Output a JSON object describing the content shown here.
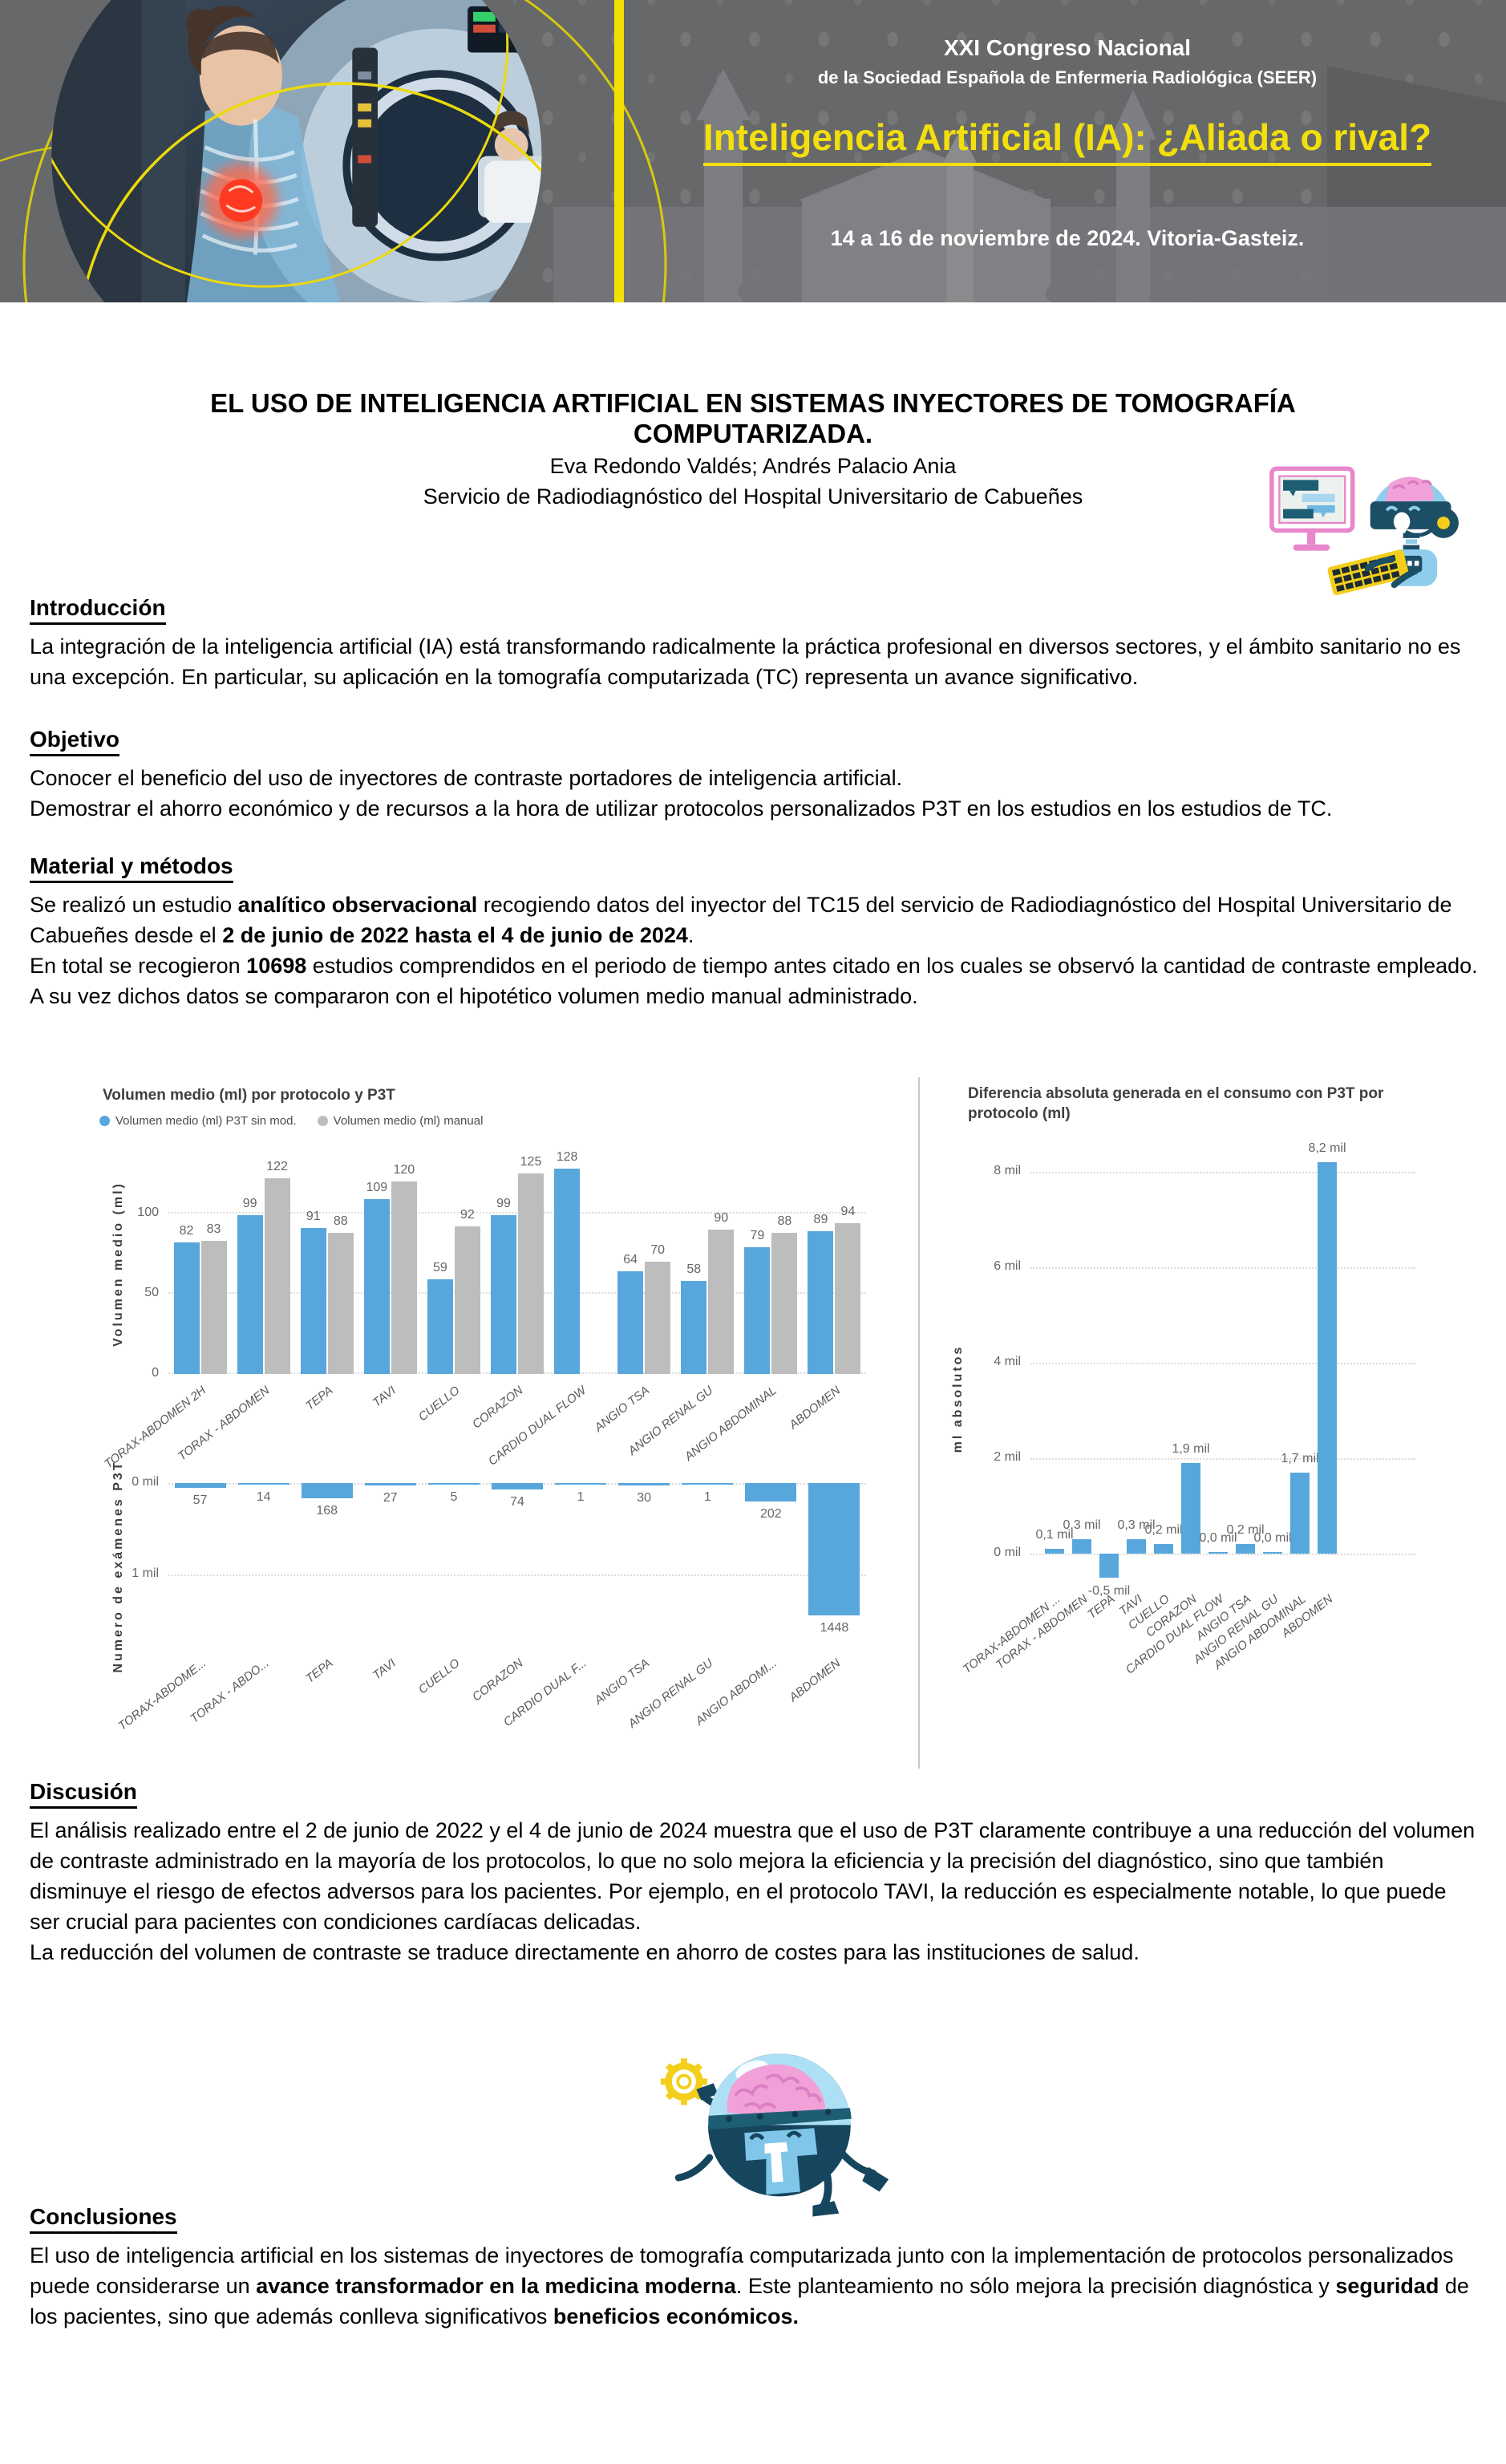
{
  "header": {
    "congress_line1": "XXI Congreso Nacional",
    "congress_line2": "de la Sociedad Española de Enfermeria Radiológica (SEER)",
    "title": "Inteligencia Artificial (IA): ¿Aliada o rival?",
    "date_place": "14 a 16 de noviembre de 2024. Vitoria-Gasteiz.",
    "accent_yellow": "#f5e003",
    "bg_gray": "#67686a"
  },
  "poster": {
    "title_line1": "EL USO DE INTELIGENCIA ARTIFICIAL EN SISTEMAS INYECTORES DE TOMOGRAFÍA",
    "title_line2": "COMPUTARIZADA.",
    "authors": "Eva Redondo Valdés; Andrés Palacio Ania",
    "affiliation": "Servicio de Radiodiagnóstico del Hospital Universitario de Cabueñes"
  },
  "illustrations": {
    "hero": "woman-with-ct-scanner-photo",
    "typing": "robot-typing-at-computer-illustration",
    "mascot": "robot-brain-mascot-illustration"
  },
  "sections": {
    "intro": {
      "heading": "Introducción",
      "paragraphs": [
        [
          {
            "t": "La integración de la inteligencia artificial (IA) está transformando radicalmente la práctica profesional en diversos sectores, y el ámbito sanitario no es una excepción. En particular, su aplicación en la tomografía computarizada (TC) representa un avance significativo.",
            "b": false
          }
        ]
      ]
    },
    "objetivo": {
      "heading": "Objetivo",
      "paragraphs": [
        [
          {
            "t": "Conocer el beneficio del uso de inyectores de contraste portadores de inteligencia artificial.",
            "b": false
          }
        ],
        [
          {
            "t": "Demostrar el ahorro económico y de recursos a la hora de utilizar protocolos personalizados P3T en los estudios en los estudios de TC.",
            "b": false
          }
        ]
      ]
    },
    "material": {
      "heading": "Material y métodos",
      "paragraphs": [
        [
          {
            "t": "Se realizó un estudio ",
            "b": false
          },
          {
            "t": "analítico observacional",
            "b": true
          },
          {
            "t": " recogiendo datos del inyector del TC15 del servicio de Radiodiagnóstico del Hospital Universitario de Cabueñes desde el ",
            "b": false
          },
          {
            "t": "2 de junio de 2022 hasta el 4 de junio de 2024",
            "b": true
          },
          {
            "t": ".",
            "b": false
          }
        ],
        [
          {
            "t": "En total se recogieron ",
            "b": false
          },
          {
            "t": "10698",
            "b": true
          },
          {
            "t": " estudios comprendidos en el periodo de tiempo antes citado en los cuales se observó la cantidad de contraste empleado.",
            "b": false
          }
        ],
        [
          {
            "t": "A su vez dichos datos se compararon con el hipotético volumen medio manual administrado.",
            "b": false
          }
        ]
      ]
    },
    "discusion": {
      "heading": "Discusión",
      "paragraphs": [
        [
          {
            "t": "El análisis realizado entre el 2 de junio de 2022 y el 4 de junio de 2024 muestra que el uso de P3T claramente contribuye a una reducción del volumen de contraste administrado en la mayoría de los protocolos, lo que no solo mejora la eficiencia y la precisión del diagnóstico, sino que también disminuye el riesgo de efectos adversos para los pacientes. Por ejemplo, en el protocolo TAVI, la reducción es especialmente notable, lo que puede ser crucial para pacientes con condiciones cardíacas delicadas.",
            "b": false
          }
        ],
        [
          {
            "t": "La reducción del volumen de contraste se traduce directamente en ahorro de costes para las instituciones de salud.",
            "b": false
          }
        ]
      ]
    },
    "conclusiones": {
      "heading": "Conclusiones",
      "paragraphs": [
        [
          {
            "t": "El uso de inteligencia artificial en los sistemas de inyectores de tomografía computarizada junto con la implementación de protocolos personalizados puede considerarse un ",
            "b": false
          },
          {
            "t": "avance transformador en la medicina moderna",
            "b": true
          },
          {
            "t": ". Este planteamiento no sólo mejora la precisión diagnóstica y ",
            "b": false
          },
          {
            "t": "seguridad",
            "b": true
          },
          {
            "t": " de los pacientes, sino que además conlleva significativos ",
            "b": false
          },
          {
            "t": "beneficios económicos.",
            "b": true
          }
        ]
      ]
    }
  },
  "chart_data": [
    {
      "type": "bar",
      "title": "Volumen medio (ml) por protocolo y P3T",
      "ylabel": "Volumen medio (ml)",
      "legend_position": "top",
      "grid": "dotted-horizontal",
      "ylim": [
        0,
        136
      ],
      "yticks": [
        {
          "v": 0,
          "label": "0"
        },
        {
          "v": 50,
          "label": "50"
        },
        {
          "v": 100,
          "label": "100"
        }
      ],
      "categories": [
        "TORAX-ABDOMEN 2H",
        "TORAX - ABDOMEN",
        "TEPA",
        "TAVI",
        "CUELLO",
        "CORAZON",
        "CARDIO DUAL FLOW",
        "ANGIO TSA",
        "ANGIO RENAL GU",
        "ANGIO ABDOMINAL",
        "ABDOMEN"
      ],
      "series": [
        {
          "name": "Volumen medio (ml) P3T sin mod.",
          "color": "#57a7dc",
          "values": [
            82,
            99,
            91,
            109,
            59,
            99,
            128,
            64,
            58,
            79,
            89
          ]
        },
        {
          "name": "Volumen medio (ml) manual",
          "color": "#bdbdbd",
          "values": [
            83,
            122,
            88,
            120,
            92,
            125,
            null,
            70,
            90,
            88,
            94
          ]
        }
      ]
    },
    {
      "type": "bar",
      "title": "",
      "ylabel": "Numero de exámenes P3T",
      "orientation": "downward",
      "grid": "dotted-horizontal",
      "color": "#57a7dc",
      "yticks": [
        {
          "v": 0,
          "label": "0 mil"
        },
        {
          "v": 1000,
          "label": "1 mil"
        }
      ],
      "categories": [
        "TORAX-ABDOME...",
        "TORAX - ABDO...",
        "TEPA",
        "TAVI",
        "CUELLO",
        "CORAZON",
        "CARDIO DUAL F...",
        "ANGIO TSA",
        "ANGIO RENAL GU",
        "ANGIO ABDOMI...",
        "ABDOMEN"
      ],
      "values": [
        57,
        14,
        168,
        27,
        5,
        74,
        1,
        30,
        1,
        202,
        1448
      ]
    },
    {
      "type": "bar",
      "title": "Diferencia absoluta generada en el consumo con P3T por protocolo (ml)",
      "ylabel": "ml absolutos",
      "grid": "dotted-horizontal",
      "color": "#57a7dc",
      "unit": "mil",
      "yticks": [
        {
          "v": 0,
          "label": "0 mil"
        },
        {
          "v": 2,
          "label": "2 mil"
        },
        {
          "v": 4,
          "label": "4 mil"
        },
        {
          "v": 6,
          "label": "6 mil"
        },
        {
          "v": 8,
          "label": "8 mil"
        }
      ],
      "categories": [
        "TORAX-ABDOMEN ...",
        "TORAX - ABDOMEN",
        "TEPA",
        "TAVI",
        "CUELLO",
        "CORAZON",
        "CARDIO DUAL FLOW",
        "ANGIO TSA",
        "ANGIO RENAL GU",
        "ANGIO ABDOMINAL",
        "ABDOMEN"
      ],
      "values": [
        0.1,
        0.3,
        -0.5,
        0.3,
        0.2,
        1.9,
        0.0,
        0.2,
        0.0,
        1.7,
        8.2
      ],
      "value_labels": [
        "0,1 mil",
        "0,3 mil",
        "-0,5 mil",
        "0,3 mil",
        "0,2 mil",
        "1,9 mil",
        "0,0 mil",
        "0,2 mil",
        "0,0 mil",
        "1,7 mil",
        "8,2 mil"
      ]
    }
  ]
}
